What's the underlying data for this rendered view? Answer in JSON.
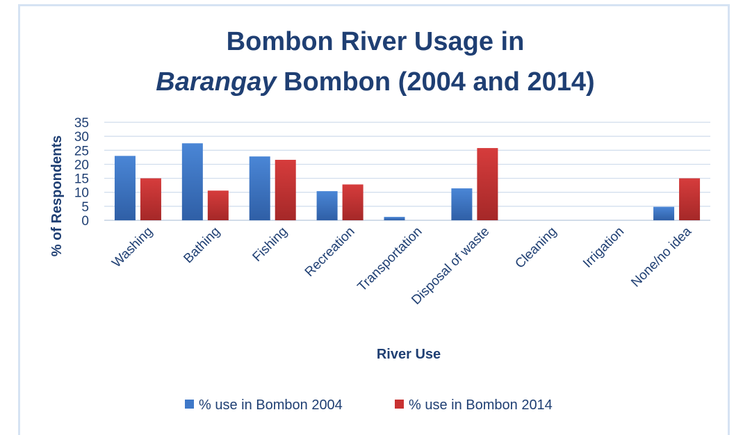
{
  "chart_data": {
    "type": "bar",
    "title_italic": "Barangay",
    "title_line1": "Bombon River Usage in",
    "title_line2_rest": " Bombon (2004 and 2014)",
    "xlabel": "River Use",
    "ylabel": "% of Respondents",
    "ylim": [
      0,
      35
    ],
    "yticks": [
      0,
      5,
      10,
      15,
      20,
      25,
      30,
      35
    ],
    "ytick_labels": [
      "0",
      "5",
      "10",
      "15",
      "20",
      "25",
      "30",
      "35"
    ],
    "grid": true,
    "legend_position": "bottom",
    "categories": [
      "Washing",
      "Bathing",
      "Fishing",
      "Recreation",
      "Transportation",
      "Disposal of waste",
      "Cleaning",
      "Irrigation",
      "None/no idea"
    ],
    "series": [
      {
        "name": "% use in Bombon 2004",
        "color": "#3f78c8",
        "values": [
          23,
          27.5,
          22.8,
          10.4,
          1.2,
          11.4,
          0,
          0,
          4.8
        ]
      },
      {
        "name": "% use in Bombon 2014",
        "color": "#c83232",
        "values": [
          15,
          10.6,
          21.6,
          12.8,
          0,
          25.8,
          0,
          0,
          15
        ]
      }
    ]
  }
}
